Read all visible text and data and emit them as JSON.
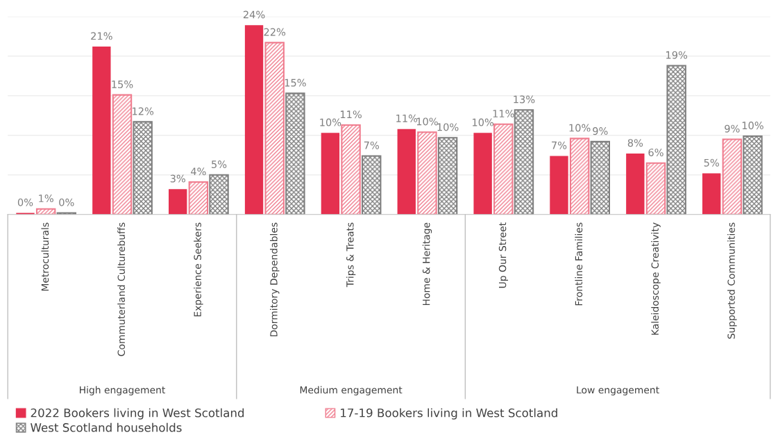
{
  "chart_data": {
    "type": "bar",
    "categories": [
      "Metroculturals",
      "Commuterland Culturebuffs",
      "Experience Seekers",
      "Dormitory Dependables",
      "Trips & Treats",
      "Home & Heritage",
      "Up Our Street",
      "Frontline Families",
      "Kaleidoscope Creativity",
      "Supported Communities"
    ],
    "series": [
      {
        "name": "2022 Bookers living in West Scotland",
        "color": "#e5304f",
        "values": [
          0.2,
          21.2,
          3.2,
          23.9,
          10.3,
          10.8,
          10.3,
          7.4,
          7.7,
          5.2
        ],
        "value_labels": [
          "0%",
          "21%",
          "3%",
          "24%",
          "10%",
          "11%",
          "10%",
          "7%",
          "8%",
          "5%"
        ]
      },
      {
        "name": "17-19 Bookers living in West Scotland",
        "color": "#f07c8e",
        "values": [
          0.7,
          15.1,
          4.1,
          21.7,
          11.3,
          10.4,
          11.4,
          9.6,
          6.5,
          9.5
        ],
        "value_labels": [
          "1%",
          "15%",
          "4%",
          "22%",
          "11%",
          "10%",
          "11%",
          "10%",
          "6%",
          "9%"
        ]
      },
      {
        "name": "West Scotland households",
        "color": "#7f7f7f",
        "values": [
          0.2,
          11.7,
          5.0,
          15.3,
          7.4,
          9.7,
          13.2,
          9.2,
          18.8,
          9.9
        ],
        "value_labels": [
          "0%",
          "12%",
          "5%",
          "15%",
          "7%",
          "10%",
          "13%",
          "9%",
          "19%",
          "10%"
        ]
      }
    ],
    "ylim": [
      0,
      25
    ],
    "yticks": [
      {
        "value": 0,
        "label": null
      },
      {
        "value": 5,
        "label": null
      },
      {
        "value": 10,
        "label": null
      },
      {
        "value": 15,
        "label": null
      },
      {
        "value": 20,
        "label": null
      },
      {
        "value": 25,
        "label": null
      }
    ],
    "grid": "y",
    "legend": "bottom",
    "annotations": [
      "High engagement",
      "Medium engagement",
      "Low engagement"
    ]
  }
}
